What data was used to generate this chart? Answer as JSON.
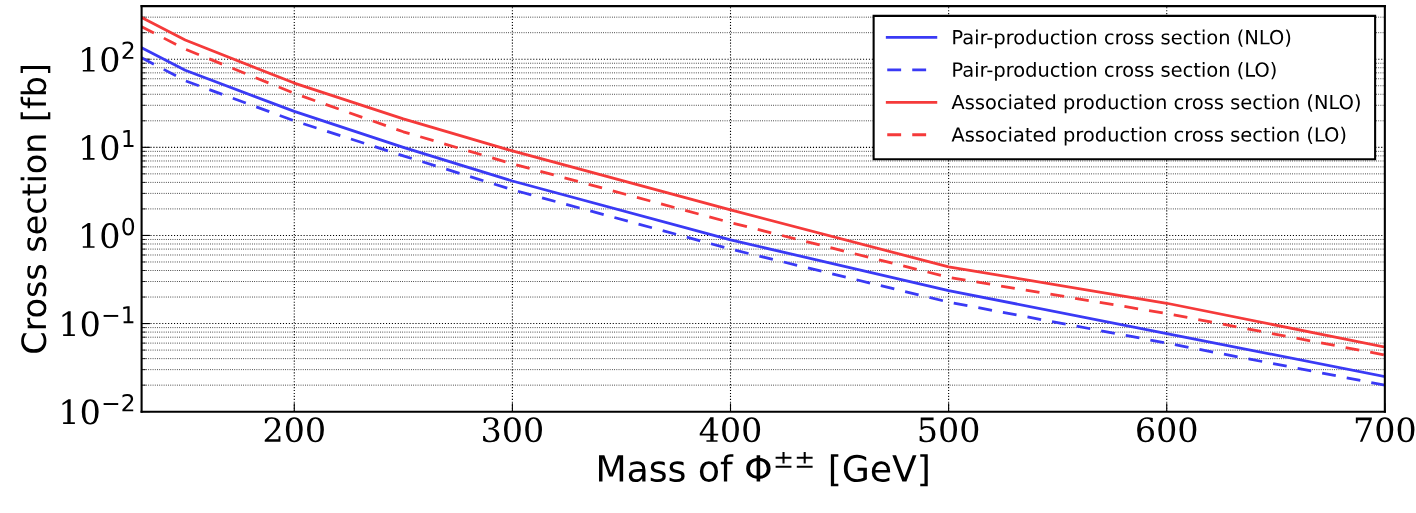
{
  "chart_data": {
    "type": "line",
    "xlabel": "Mass of Φ$^{±±}$ [GeV]",
    "ylabel": "Cross section [fb]",
    "x": [
      130,
      150,
      200,
      250,
      300,
      400,
      500,
      600,
      700
    ],
    "series": [
      {
        "name": "Pair-production cross section (NLO)",
        "color": "#3a3af5",
        "line_style": "solid",
        "values": [
          135,
          75,
          25.6,
          10,
          4.15,
          0.89,
          0.237,
          0.077,
          0.025
        ]
      },
      {
        "name": "Pair-production cross section (LO)",
        "color": "#3a3af5",
        "line_style": "dashed",
        "values": [
          104,
          57,
          20,
          8,
          3.3,
          0.7,
          0.175,
          0.06,
          0.02
        ]
      },
      {
        "name": "Associated production cross section (NLO)",
        "color": "#f53a3a",
        "line_style": "solid",
        "values": [
          298,
          165,
          53.6,
          21,
          9.1,
          1.95,
          0.44,
          0.17,
          0.054
        ]
      },
      {
        "name": "Associated production cross section (LO)",
        "color": "#f53a3a",
        "line_style": "dashed",
        "values": [
          234,
          130,
          41,
          15,
          6.5,
          1.4,
          0.335,
          0.13,
          0.044
        ]
      }
    ],
    "log": "y",
    "xlim": [
      130,
      700
    ],
    "ylim": [
      0.01,
      400
    ],
    "xticks": [
      200,
      300,
      400,
      500,
      600,
      700
    ],
    "yticks": [
      {
        "value": 0.01,
        "label": "10$^{−2}$"
      },
      {
        "value": 0.1,
        "label": "10$^{−1}$"
      },
      {
        "value": 1,
        "label": "10$^{0}$"
      },
      {
        "value": 10,
        "label": "10$^{1}$"
      },
      {
        "value": 100,
        "label": "10$^{2}$"
      }
    ],
    "grid": true,
    "legend": "top right"
  }
}
